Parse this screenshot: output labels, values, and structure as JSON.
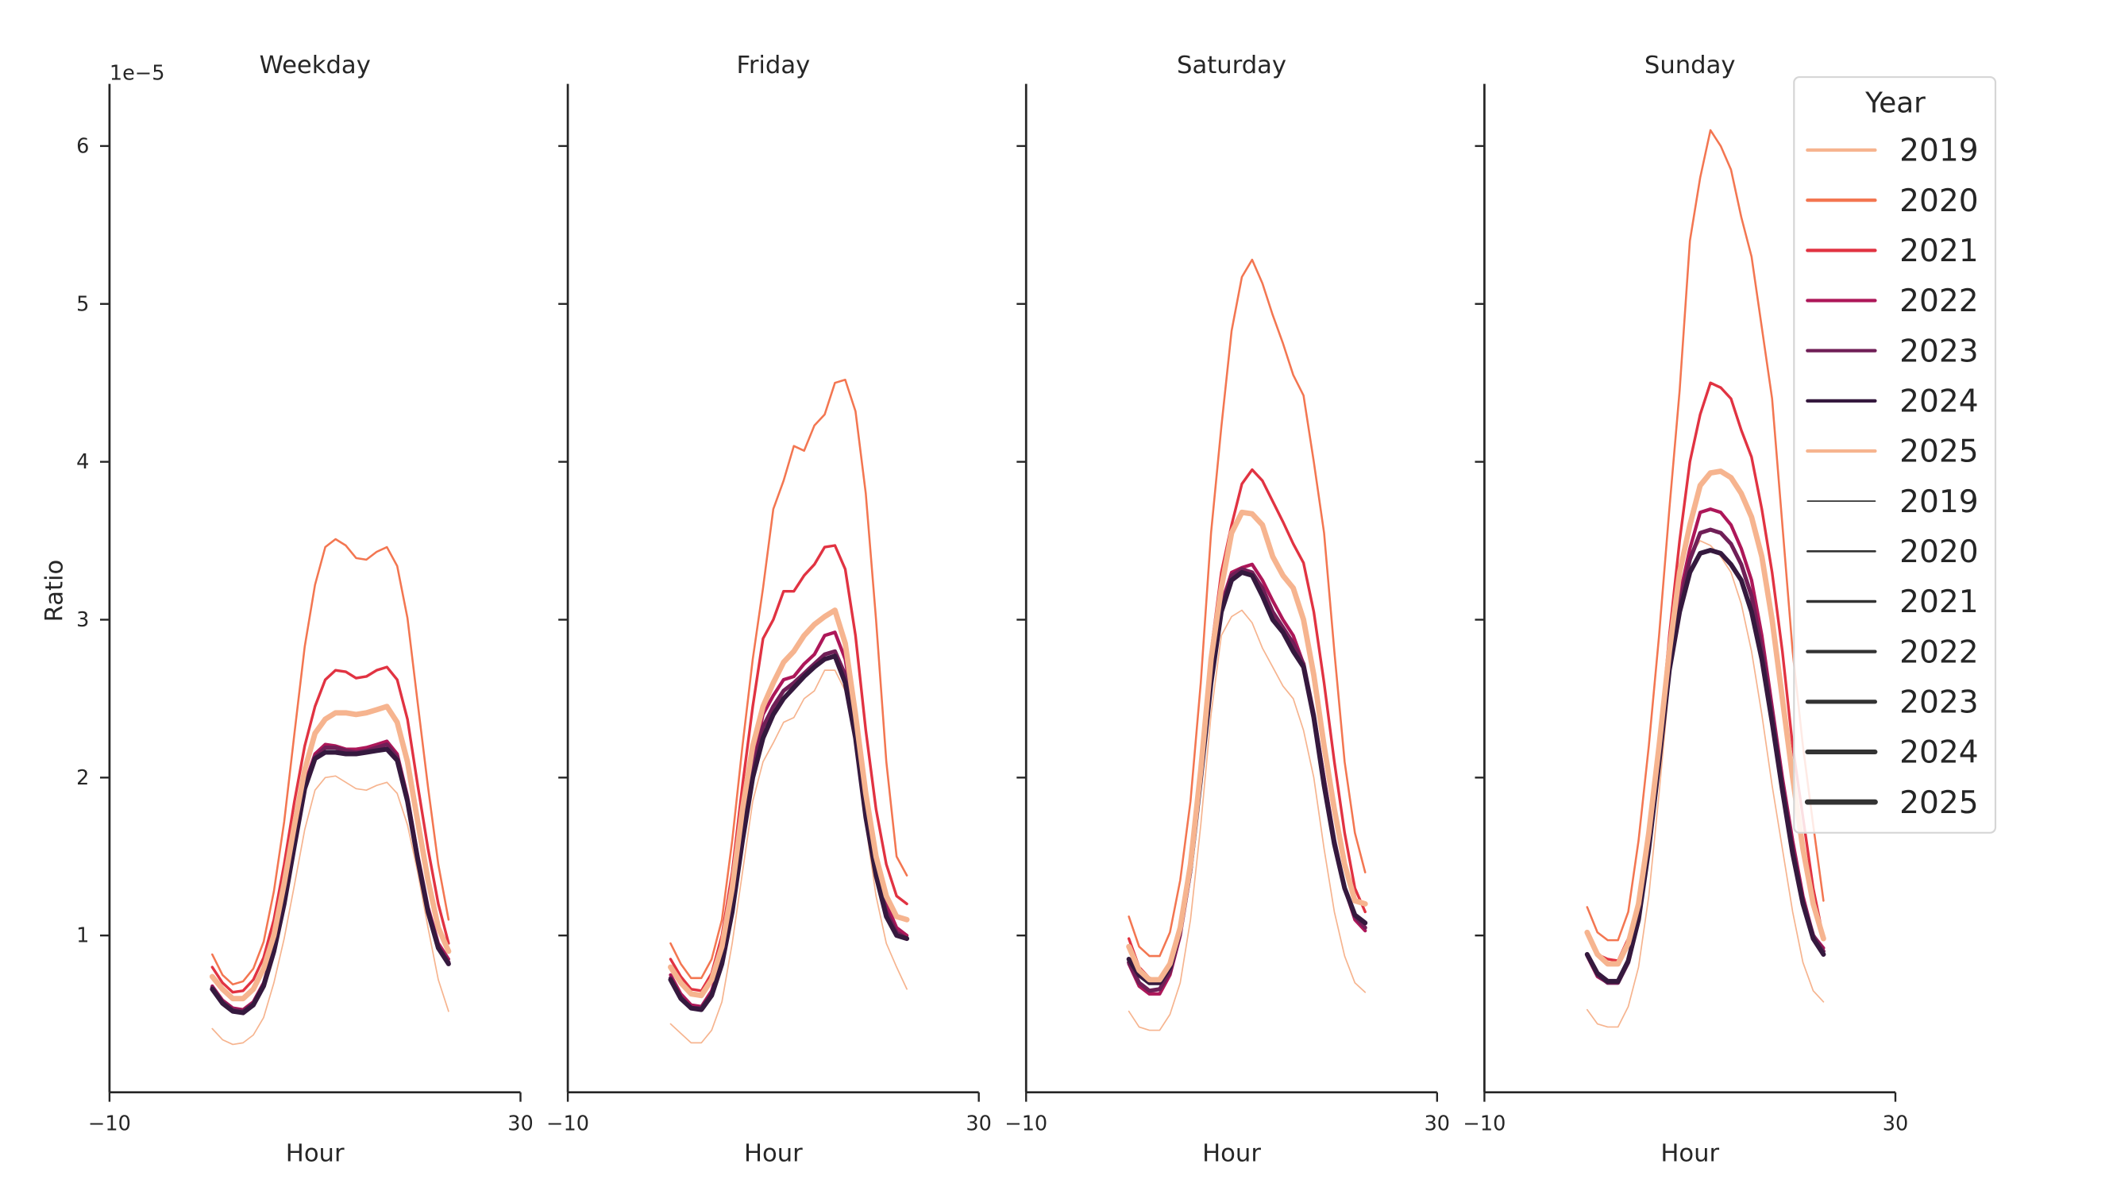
{
  "chart_data": {
    "type": "line",
    "offset_text": "1e−5",
    "ylabel": "Ratio",
    "xlabel": "Hour",
    "xlim": [
      -10,
      30
    ],
    "ylim": [
      0,
      6.4
    ],
    "xticks": [
      -10,
      30
    ],
    "xtick_labels": [
      "−10",
      "30"
    ],
    "yticks": [
      1,
      2,
      3,
      4,
      5,
      6
    ],
    "ytick_labels": [
      "1",
      "2",
      "3",
      "4",
      "5",
      "6"
    ],
    "grid": false,
    "legend": {
      "title": "Year",
      "placement": "top-right",
      "hue_entries": [
        {
          "label": "2019",
          "color": "#f6b48f"
        },
        {
          "label": "2020",
          "color": "#f37651"
        },
        {
          "label": "2021",
          "color": "#e13342"
        },
        {
          "label": "2022",
          "color": "#ad1759"
        },
        {
          "label": "2023",
          "color": "#701f57"
        },
        {
          "label": "2024",
          "color": "#35193e"
        },
        {
          "label": "2025",
          "color": "#f6b48f"
        }
      ],
      "size_entries": [
        {
          "label": "2019",
          "size_rank": 1
        },
        {
          "label": "2020",
          "size_rank": 2
        },
        {
          "label": "2021",
          "size_rank": 3
        },
        {
          "label": "2022",
          "size_rank": 4
        },
        {
          "label": "2023",
          "size_rank": 5
        },
        {
          "label": "2024",
          "size_rank": 6
        },
        {
          "label": "2025",
          "size_rank": 7
        }
      ]
    },
    "x": [
      0,
      1,
      2,
      3,
      4,
      5,
      6,
      7,
      8,
      9,
      10,
      11,
      12,
      13,
      14,
      15,
      16,
      17,
      18,
      19,
      20,
      21,
      22,
      23
    ],
    "panels": [
      {
        "title": "Weekday",
        "series": [
          {
            "name": "2019",
            "values": [
              0.41,
              0.34,
              0.31,
              0.32,
              0.37,
              0.48,
              0.7,
              0.98,
              1.32,
              1.67,
              1.92,
              2.0,
              2.01,
              1.97,
              1.93,
              1.92,
              1.95,
              1.97,
              1.9,
              1.7,
              1.4,
              1.05,
              0.72,
              0.52
            ]
          },
          {
            "name": "2020",
            "values": [
              0.88,
              0.75,
              0.69,
              0.71,
              0.79,
              0.96,
              1.28,
              1.72,
              2.28,
              2.83,
              3.22,
              3.46,
              3.51,
              3.47,
              3.39,
              3.38,
              3.43,
              3.46,
              3.34,
              3.01,
              2.47,
              1.94,
              1.45,
              1.1
            ]
          },
          {
            "name": "2021",
            "values": [
              0.8,
              0.7,
              0.64,
              0.65,
              0.72,
              0.86,
              1.1,
              1.45,
              1.85,
              2.2,
              2.45,
              2.62,
              2.68,
              2.67,
              2.63,
              2.64,
              2.68,
              2.7,
              2.62,
              2.37,
              1.95,
              1.55,
              1.2,
              0.95
            ]
          },
          {
            "name": "2022",
            "values": [
              0.68,
              0.59,
              0.54,
              0.53,
              0.58,
              0.7,
              0.92,
              1.22,
              1.6,
              1.96,
              2.15,
              2.21,
              2.2,
              2.18,
              2.18,
              2.19,
              2.21,
              2.23,
              2.15,
              1.88,
              1.51,
              1.18,
              0.95,
              0.85
            ]
          },
          {
            "name": "2023",
            "values": [
              0.67,
              0.58,
              0.53,
              0.52,
              0.57,
              0.69,
              0.91,
              1.21,
              1.58,
              1.94,
              2.13,
              2.19,
              2.19,
              2.17,
              2.16,
              2.17,
              2.19,
              2.21,
              2.13,
              1.86,
              1.49,
              1.16,
              0.93,
              0.83
            ]
          },
          {
            "name": "2024",
            "values": [
              0.66,
              0.57,
              0.52,
              0.51,
              0.56,
              0.68,
              0.9,
              1.2,
              1.57,
              1.93,
              2.12,
              2.16,
              2.16,
              2.15,
              2.15,
              2.16,
              2.17,
              2.18,
              2.11,
              1.85,
              1.48,
              1.15,
              0.92,
              0.82
            ]
          },
          {
            "name": "2025",
            "values": [
              0.74,
              0.66,
              0.6,
              0.6,
              0.66,
              0.79,
              1.0,
              1.33,
              1.7,
              2.05,
              2.28,
              2.37,
              2.41,
              2.41,
              2.4,
              2.41,
              2.43,
              2.45,
              2.35,
              2.1,
              1.72,
              1.35,
              1.05,
              0.9
            ]
          }
        ]
      },
      {
        "title": "Friday",
        "series": [
          {
            "name": "2019",
            "values": [
              0.44,
              0.38,
              0.32,
              0.32,
              0.4,
              0.58,
              0.95,
              1.4,
              1.85,
              2.1,
              2.22,
              2.35,
              2.38,
              2.5,
              2.55,
              2.68,
              2.68,
              2.55,
              2.2,
              1.7,
              1.25,
              0.95,
              0.8,
              0.66
            ]
          },
          {
            "name": "2020",
            "values": [
              0.95,
              0.82,
              0.73,
              0.73,
              0.85,
              1.1,
              1.6,
              2.2,
              2.75,
              3.2,
              3.7,
              3.88,
              4.1,
              4.07,
              4.23,
              4.3,
              4.5,
              4.52,
              4.32,
              3.8,
              3.0,
              2.1,
              1.5,
              1.38
            ]
          },
          {
            "name": "2021",
            "values": [
              0.85,
              0.74,
              0.66,
              0.65,
              0.76,
              1.0,
              1.4,
              1.95,
              2.45,
              2.88,
              3.0,
              3.18,
              3.18,
              3.28,
              3.35,
              3.46,
              3.47,
              3.32,
              2.9,
              2.3,
              1.8,
              1.45,
              1.25,
              1.2
            ]
          },
          {
            "name": "2022",
            "values": [
              0.75,
              0.63,
              0.56,
              0.55,
              0.65,
              0.85,
              1.2,
              1.65,
              2.1,
              2.4,
              2.52,
              2.62,
              2.64,
              2.72,
              2.78,
              2.9,
              2.92,
              2.75,
              2.35,
              1.85,
              1.45,
              1.2,
              1.05,
              1.0
            ]
          },
          {
            "name": "2023",
            "values": [
              0.73,
              0.61,
              0.54,
              0.54,
              0.63,
              0.83,
              1.18,
              1.62,
              2.05,
              2.32,
              2.45,
              2.55,
              2.6,
              2.66,
              2.72,
              2.78,
              2.8,
              2.65,
              2.3,
              1.8,
              1.4,
              1.15,
              1.02,
              0.98
            ]
          },
          {
            "name": "2024",
            "values": [
              0.72,
              0.6,
              0.54,
              0.53,
              0.62,
              0.82,
              1.15,
              1.6,
              2.0,
              2.25,
              2.4,
              2.5,
              2.57,
              2.64,
              2.7,
              2.75,
              2.77,
              2.6,
              2.25,
              1.75,
              1.38,
              1.12,
              1.0,
              0.98
            ]
          },
          {
            "name": "2025",
            "values": [
              0.8,
              0.7,
              0.63,
              0.62,
              0.72,
              0.93,
              1.3,
              1.8,
              2.2,
              2.45,
              2.6,
              2.73,
              2.8,
              2.9,
              2.97,
              3.02,
              3.06,
              2.85,
              2.4,
              1.9,
              1.5,
              1.25,
              1.12,
              1.1
            ]
          }
        ]
      },
      {
        "title": "Saturday",
        "series": [
          {
            "name": "2019",
            "values": [
              0.52,
              0.42,
              0.4,
              0.4,
              0.5,
              0.7,
              1.1,
              1.7,
              2.4,
              2.9,
              3.02,
              3.06,
              2.98,
              2.82,
              2.7,
              2.58,
              2.5,
              2.3,
              2.0,
              1.55,
              1.15,
              0.87,
              0.7,
              0.64
            ]
          },
          {
            "name": "2020",
            "values": [
              1.12,
              0.93,
              0.87,
              0.87,
              1.02,
              1.35,
              1.85,
              2.6,
              3.55,
              4.22,
              4.83,
              5.17,
              5.28,
              5.13,
              4.93,
              4.75,
              4.55,
              4.42,
              4.0,
              3.55,
              2.8,
              2.1,
              1.65,
              1.4
            ]
          },
          {
            "name": "2021",
            "values": [
              0.98,
              0.8,
              0.73,
              0.72,
              0.82,
              1.05,
              1.45,
              2.1,
              2.8,
              3.3,
              3.6,
              3.86,
              3.95,
              3.88,
              3.75,
              3.62,
              3.48,
              3.36,
              3.05,
              2.6,
              2.1,
              1.65,
              1.3,
              1.15
            ]
          },
          {
            "name": "2022",
            "values": [
              0.82,
              0.68,
              0.63,
              0.63,
              0.75,
              1.0,
              1.4,
              2.0,
              2.65,
              3.1,
              3.3,
              3.33,
              3.35,
              3.25,
              3.12,
              3.0,
              2.9,
              2.72,
              2.4,
              2.0,
              1.6,
              1.3,
              1.1,
              1.03
            ]
          },
          {
            "name": "2023",
            "values": [
              0.83,
              0.7,
              0.65,
              0.66,
              0.77,
              1.02,
              1.42,
              2.0,
              2.63,
              3.08,
              3.28,
              3.32,
              3.3,
              3.2,
              3.05,
              2.95,
              2.85,
              2.72,
              2.4,
              1.98,
              1.6,
              1.3,
              1.12,
              1.05
            ]
          },
          {
            "name": "2024",
            "values": [
              0.85,
              0.75,
              0.7,
              0.7,
              0.8,
              1.04,
              1.43,
              2.0,
              2.6,
              3.05,
              3.25,
              3.3,
              3.28,
              3.15,
              3.0,
              2.92,
              2.8,
              2.7,
              2.38,
              1.95,
              1.58,
              1.3,
              1.13,
              1.08
            ]
          },
          {
            "name": "2025",
            "values": [
              0.93,
              0.78,
              0.72,
              0.72,
              0.82,
              1.05,
              1.45,
              2.05,
              2.75,
              3.2,
              3.55,
              3.68,
              3.67,
              3.6,
              3.4,
              3.28,
              3.2,
              3.0,
              2.65,
              2.2,
              1.8,
              1.45,
              1.22,
              1.2
            ]
          }
        ]
      },
      {
        "title": "Sunday",
        "series": [
          {
            "name": "2019",
            "values": [
              0.53,
              0.44,
              0.42,
              0.42,
              0.55,
              0.8,
              1.25,
              1.9,
              2.6,
              3.1,
              3.4,
              3.5,
              3.47,
              3.4,
              3.3,
              3.1,
              2.8,
              2.4,
              1.95,
              1.55,
              1.15,
              0.83,
              0.65,
              0.58
            ]
          },
          {
            "name": "2020",
            "values": [
              1.18,
              1.02,
              0.97,
              0.97,
              1.15,
              1.6,
              2.2,
              2.9,
              3.7,
              4.45,
              5.4,
              5.8,
              6.1,
              6.0,
              5.85,
              5.55,
              5.3,
              4.85,
              4.4,
              3.6,
              2.8,
              2.2,
              1.7,
              1.22
            ]
          },
          {
            "name": "2021",
            "values": [
              1.02,
              0.88,
              0.85,
              0.84,
              0.98,
              1.2,
              1.6,
              2.2,
              2.9,
              3.5,
              4.0,
              4.3,
              4.5,
              4.47,
              4.4,
              4.2,
              4.03,
              3.7,
              3.3,
              2.8,
              2.2,
              1.75,
              1.3,
              0.98
            ]
          },
          {
            "name": "2022",
            "values": [
              0.87,
              0.74,
              0.7,
              0.7,
              0.83,
              1.1,
              1.55,
              2.1,
              2.7,
              3.15,
              3.45,
              3.68,
              3.7,
              3.68,
              3.6,
              3.45,
              3.25,
              2.9,
              2.45,
              2.0,
              1.6,
              1.25,
              1.0,
              0.92
            ]
          },
          {
            "name": "2023",
            "values": [
              0.88,
              0.75,
              0.7,
              0.7,
              0.83,
              1.1,
              1.55,
              2.1,
              2.7,
              3.1,
              3.38,
              3.55,
              3.57,
              3.55,
              3.48,
              3.35,
              3.15,
              2.82,
              2.4,
              1.95,
              1.55,
              1.22,
              1.0,
              0.9
            ]
          },
          {
            "name": "2024",
            "values": [
              0.88,
              0.76,
              0.71,
              0.71,
              0.84,
              1.1,
              1.55,
              2.1,
              2.68,
              3.05,
              3.3,
              3.42,
              3.44,
              3.42,
              3.35,
              3.25,
              3.05,
              2.75,
              2.35,
              1.92,
              1.52,
              1.2,
              0.98,
              0.88
            ]
          },
          {
            "name": "2025",
            "values": [
              1.02,
              0.88,
              0.82,
              0.82,
              0.95,
              1.2,
              1.65,
              2.2,
              2.8,
              3.3,
              3.6,
              3.85,
              3.93,
              3.94,
              3.9,
              3.8,
              3.65,
              3.4,
              3.0,
              2.5,
              2.0,
              1.55,
              1.2,
              0.98
            ]
          }
        ]
      }
    ]
  }
}
